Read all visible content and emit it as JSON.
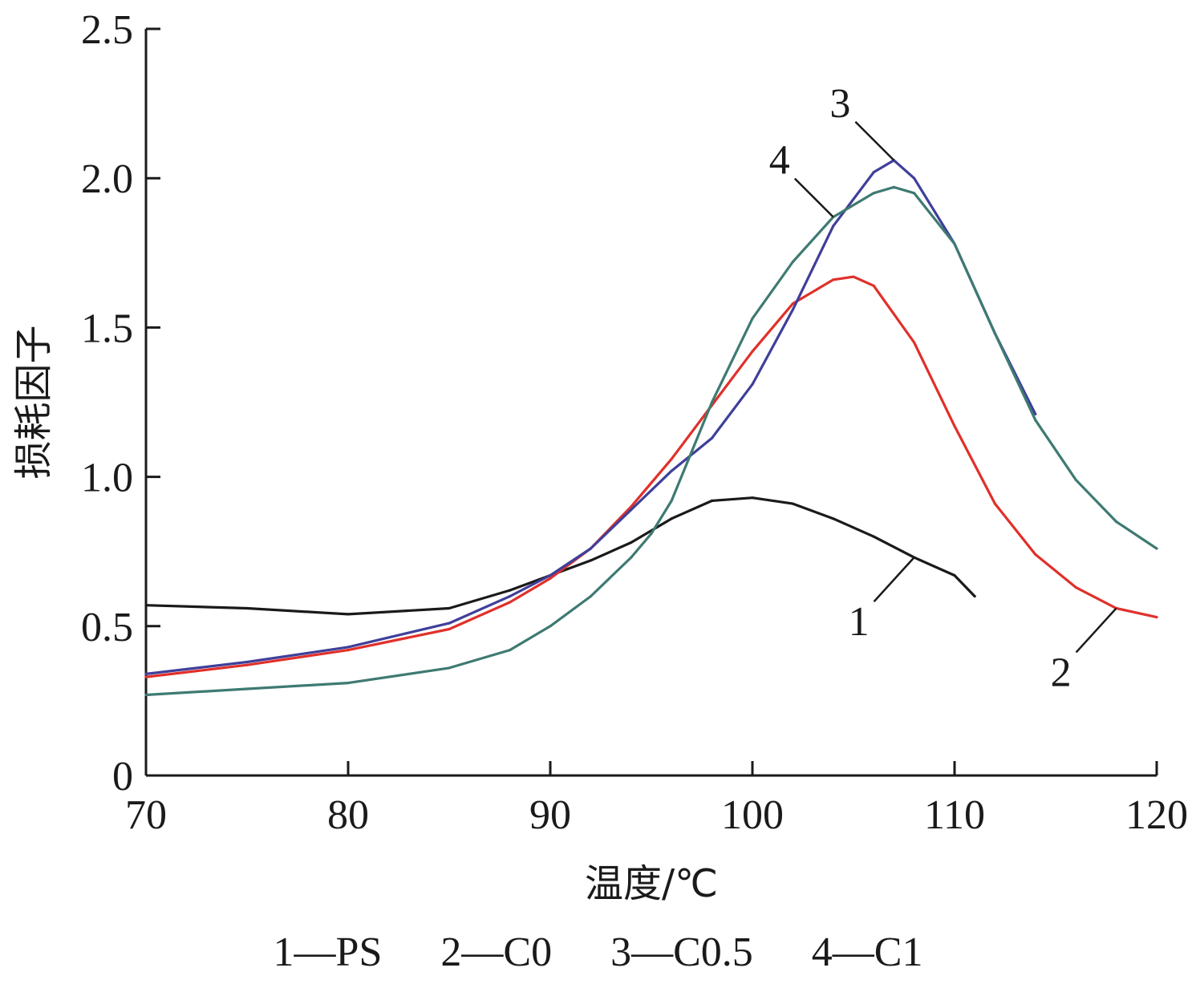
{
  "chart_data": {
    "type": "line",
    "xlabel": "温度/℃",
    "ylabel": "损耗因子",
    "xlim": [
      70,
      120
    ],
    "ylim": [
      0,
      2.5
    ],
    "xticks": [
      "70",
      "80",
      "90",
      "100",
      "110",
      "120"
    ],
    "yticks": [
      "0",
      "0.5",
      "1.0",
      "1.5",
      "2.0",
      "2.5"
    ],
    "grid": false,
    "legend_position": "bottom",
    "legend": [
      "1—PS",
      "2—C0",
      "3—C0.5",
      "4—C1"
    ],
    "series": [
      {
        "name": "1—PS",
        "tag": "1",
        "color": "#1a1a1a",
        "x": [
          70,
          75,
          80,
          85,
          88,
          90,
          92,
          94,
          96,
          98,
          100,
          102,
          104,
          106,
          108,
          110,
          111
        ],
        "y": [
          0.57,
          0.56,
          0.54,
          0.56,
          0.62,
          0.67,
          0.72,
          0.78,
          0.86,
          0.92,
          0.93,
          0.91,
          0.86,
          0.8,
          0.73,
          0.67,
          0.6
        ]
      },
      {
        "name": "2—C0",
        "tag": "2",
        "color": "#e0302a",
        "x": [
          70,
          75,
          80,
          85,
          88,
          90,
          92,
          94,
          96,
          98,
          100,
          102,
          104,
          105,
          106,
          108,
          110,
          112,
          114,
          116,
          118,
          120
        ],
        "y": [
          0.33,
          0.37,
          0.42,
          0.49,
          0.58,
          0.66,
          0.76,
          0.9,
          1.06,
          1.24,
          1.42,
          1.58,
          1.66,
          1.67,
          1.64,
          1.45,
          1.17,
          0.91,
          0.74,
          0.63,
          0.56,
          0.53
        ]
      },
      {
        "name": "3—C0.5",
        "tag": "3",
        "color": "#3f3f9a",
        "x": [
          70,
          75,
          80,
          85,
          88,
          90,
          92,
          94,
          96,
          98,
          100,
          102,
          104,
          106,
          107,
          108,
          110,
          112,
          114
        ],
        "y": [
          0.34,
          0.38,
          0.43,
          0.51,
          0.6,
          0.67,
          0.76,
          0.89,
          1.02,
          1.13,
          1.31,
          1.56,
          1.84,
          2.02,
          2.06,
          2.0,
          1.78,
          1.48,
          1.21
        ]
      },
      {
        "name": "4—C1",
        "tag": "4",
        "color": "#3e7a72",
        "x": [
          70,
          75,
          80,
          85,
          88,
          90,
          92,
          94,
          95,
          96,
          98,
          100,
          102,
          104,
          106,
          107,
          108,
          110,
          112,
          114,
          116,
          118,
          120
        ],
        "y": [
          0.27,
          0.29,
          0.31,
          0.36,
          0.42,
          0.5,
          0.6,
          0.73,
          0.81,
          0.92,
          1.25,
          1.53,
          1.72,
          1.87,
          1.95,
          1.97,
          1.95,
          1.78,
          1.48,
          1.19,
          0.99,
          0.85,
          0.76
        ]
      }
    ]
  }
}
